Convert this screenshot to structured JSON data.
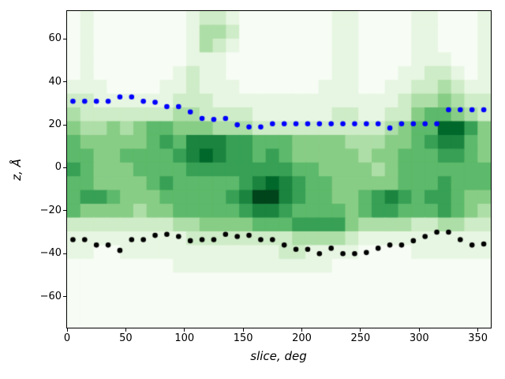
{
  "chart_data": {
    "type": "heatmap",
    "title": "",
    "xlabel": "slice, deg",
    "ylabel": "z, Å",
    "xlim": [
      0,
      361
    ],
    "ylim": [
      -74.5,
      73
    ],
    "grid": "off",
    "legend": "none",
    "x_ticks": [
      {
        "v": 0,
        "label": "0"
      },
      {
        "v": 50,
        "label": "50"
      },
      {
        "v": 100,
        "label": "100"
      },
      {
        "v": 150,
        "label": "150"
      },
      {
        "v": 200,
        "label": "200"
      },
      {
        "v": 250,
        "label": "250"
      },
      {
        "v": 300,
        "label": "300"
      },
      {
        "v": 350,
        "label": "350"
      }
    ],
    "y_ticks": [
      {
        "v": 60,
        "label": "60"
      },
      {
        "v": 40,
        "label": "40"
      },
      {
        "v": 20,
        "label": "20"
      },
      {
        "v": 0,
        "label": "0"
      },
      {
        "v": -20,
        "label": "−20"
      },
      {
        "v": -40,
        "label": "−40"
      },
      {
        "v": -60,
        "label": "−60"
      }
    ],
    "colormap": "Greens",
    "colormap_anchors": [
      "#f7fcf5",
      "#e5f5e0",
      "#c7e9c0",
      "#a1d99b",
      "#74c476",
      "#41ab5d",
      "#238b45",
      "#006d2c",
      "#00441b"
    ],
    "heatmap": {
      "cols": 32,
      "rows": 23,
      "x_range_deg": [
        0,
        361
      ],
      "z_range_A": [
        73,
        -74.5
      ],
      "value_scale": "density 0-9 (0=min/white, 9=max/dark green), rows listed top (z=73) to bottom (z=-74.5)",
      "rows_values": [
        "01000000012210000000110000110001",
        "01000000013320000000110000110001",
        "01000000013210000000110000110001",
        "01000000011100000000110000111001",
        "01000000121100000000110001122101",
        "11100001121110000001110011223211",
        "22111111222111111111111112334322",
        "32222222332222111111221122455432",
        "43343455444333222222222234558864",
        "54444456577766555444433344567754",
        "55445555678766565444443445556654",
        "65444555566666666554444345555555",
        "55444456555556787655444445556555",
        "56654445555567997655445676566544",
        "54444344555556776555545665556543",
        "22222222334444555666643333223322",
        "11111111122222222333321111111111",
        "11001111111111112211110000111111",
        "00000000111111111111000000000000",
        "00000000000000000000000000000000",
        "00000000000000000000000000000000",
        "00000000000000000000000000000000",
        "00000000000000000000000000000000"
      ]
    },
    "series": [
      {
        "name": "upper-boundary-dots",
        "marker": "dot",
        "color": "#0000ff",
        "x": [
          5,
          15,
          25,
          35,
          45,
          55,
          65,
          75,
          85,
          95,
          105,
          115,
          125,
          135,
          145,
          155,
          165,
          175,
          185,
          195,
          205,
          215,
          225,
          235,
          245,
          255,
          265,
          275,
          285,
          295,
          305,
          315,
          325,
          335,
          345,
          355
        ],
        "z": [
          31,
          31,
          31,
          31,
          33,
          33,
          31,
          30.5,
          28.5,
          28.5,
          26,
          23,
          22.5,
          23,
          20,
          19,
          19,
          20.5,
          20.5,
          20.5,
          20.5,
          20.5,
          20.5,
          20.5,
          20.5,
          20.5,
          20.5,
          18.5,
          20.5,
          20.5,
          20.5,
          20.5,
          27,
          27,
          27,
          27
        ]
      },
      {
        "name": "lower-boundary-dots",
        "marker": "dot",
        "color": "#000000",
        "x": [
          5,
          15,
          25,
          35,
          45,
          55,
          65,
          75,
          85,
          95,
          105,
          115,
          125,
          135,
          145,
          155,
          165,
          175,
          185,
          195,
          205,
          215,
          225,
          235,
          245,
          255,
          265,
          275,
          285,
          295,
          305,
          315,
          325,
          335,
          345,
          355
        ],
        "z": [
          -33.5,
          -33.5,
          -36,
          -36,
          -38.5,
          -33.5,
          -33.5,
          -31.5,
          -31,
          -32,
          -34,
          -33.5,
          -33.5,
          -31,
          -32,
          -31.5,
          -33.5,
          -33.5,
          -36,
          -38,
          -38,
          -40,
          -37.5,
          -40,
          -40,
          -39.5,
          -37.5,
          -36,
          -36,
          -34,
          -32,
          -30,
          -30,
          -33.5,
          -36,
          -35.5
        ]
      }
    ]
  }
}
